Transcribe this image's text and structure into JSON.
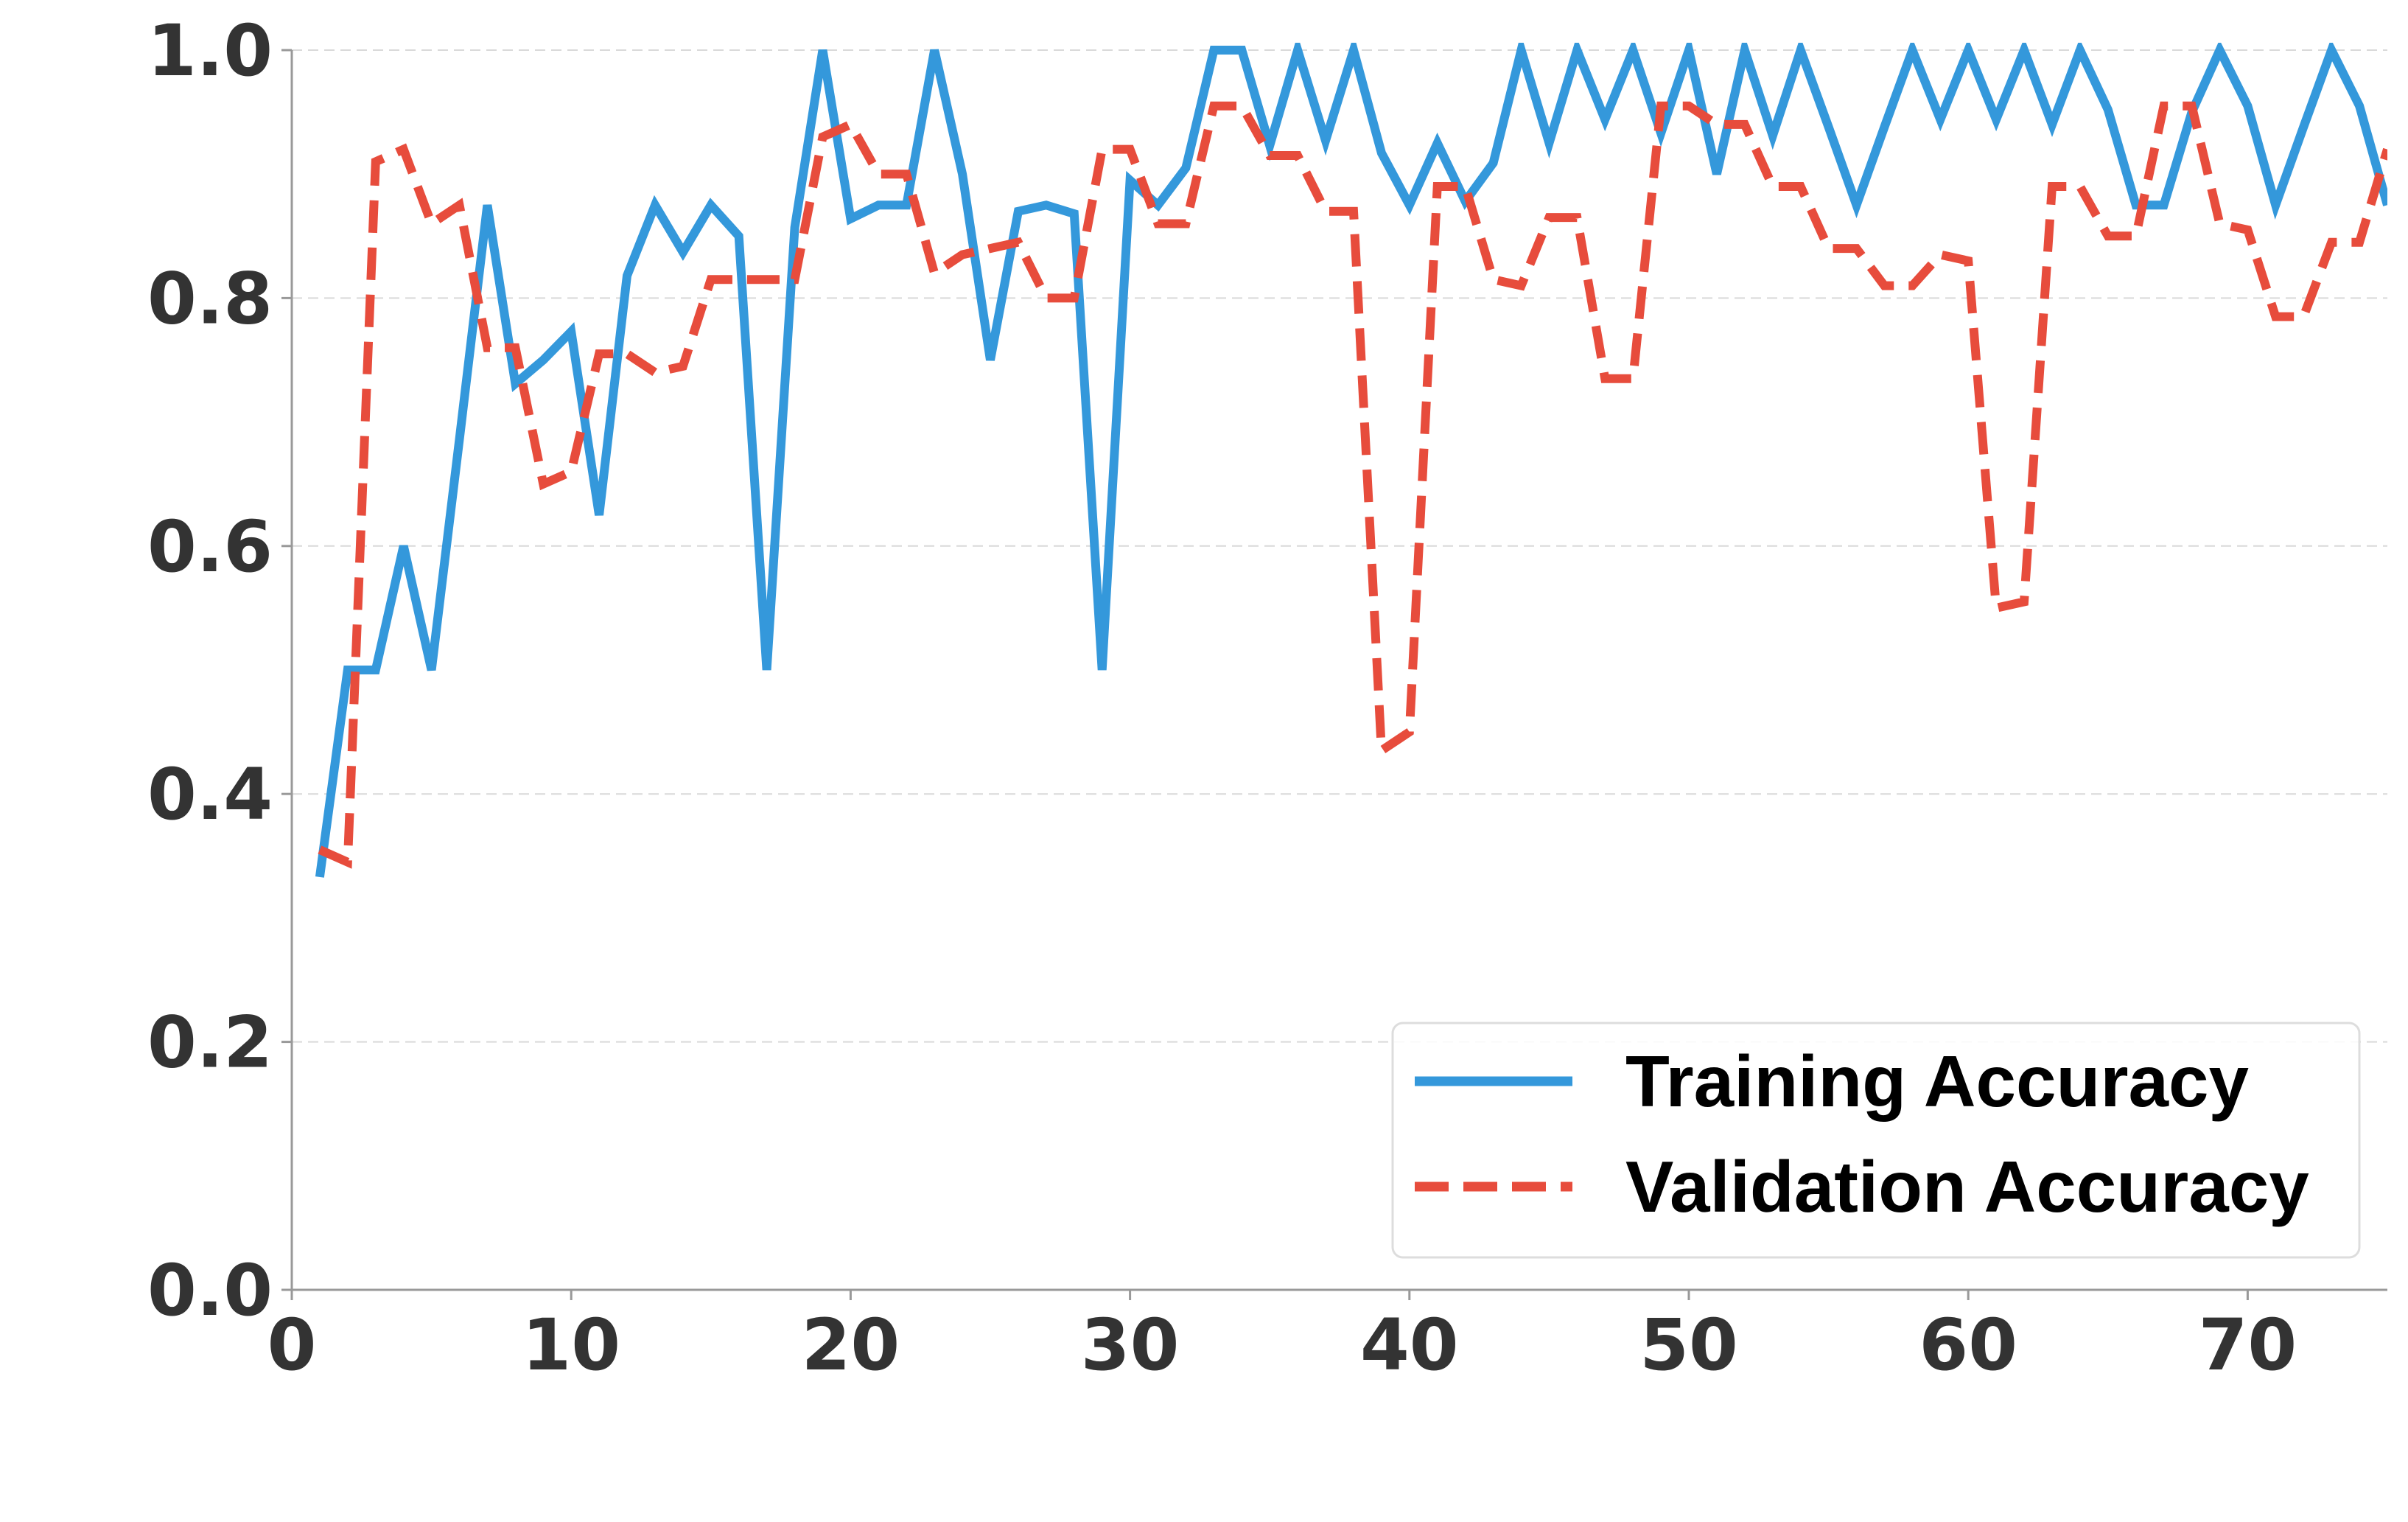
{
  "chart_data": {
    "type": "line",
    "title": "",
    "xlabel": "",
    "ylabel": "",
    "xlim": [
      0,
      75
    ],
    "ylim": [
      0,
      1.0
    ],
    "xticks": [
      0,
      10,
      20,
      30,
      40,
      50,
      60,
      70
    ],
    "yticks": [
      0.0,
      0.2,
      0.4,
      0.6,
      0.8,
      1.0
    ],
    "xtick_labels": [
      "0",
      "10",
      "20",
      "30",
      "40",
      "50",
      "60",
      "70"
    ],
    "ytick_labels": [
      "0.0",
      "0.2",
      "0.4",
      "0.6",
      "0.8",
      "1.0"
    ],
    "grid": "horizontal dashed",
    "legend_position": "lower-right",
    "series": [
      {
        "name": "Training Accuracy",
        "color": "#3498db",
        "style": "solid",
        "x": [
          1,
          2,
          3,
          4,
          5,
          6,
          7,
          8,
          9,
          10,
          11,
          12,
          13,
          14,
          15,
          16,
          17,
          18,
          19,
          20,
          21,
          22,
          23,
          24,
          25,
          26,
          27,
          28,
          29,
          30,
          31,
          32,
          33,
          34,
          35,
          36,
          37,
          38,
          39,
          40,
          41,
          42,
          43,
          44,
          45,
          46,
          47,
          48,
          49,
          50,
          51,
          52,
          53,
          54,
          55,
          56,
          57,
          58,
          59,
          60,
          61,
          62,
          63,
          64,
          65,
          66,
          67,
          68,
          69,
          70,
          71,
          72,
          73,
          74,
          75
        ],
        "values": [
          0.333,
          0.5,
          0.5,
          0.6,
          0.5,
          0.686,
          0.875,
          0.731,
          0.75,
          0.773,
          0.625,
          0.818,
          0.875,
          0.837,
          0.875,
          0.85,
          0.5,
          0.857,
          1.0,
          0.864,
          0.875,
          0.875,
          1.0,
          0.9,
          0.75,
          0.87,
          0.875,
          0.868,
          0.5,
          0.895,
          0.875,
          0.905,
          1.0,
          1.0,
          0.923,
          1.0,
          0.927,
          1.0,
          0.917,
          0.875,
          0.925,
          0.878,
          0.909,
          1.0,
          0.925,
          1.0,
          0.944,
          1.0,
          0.933,
          1.0,
          0.9,
          1.0,
          0.931,
          1.0,
          0.938,
          0.875,
          0.938,
          1.0,
          0.944,
          1.0,
          0.944,
          1.0,
          0.94,
          1.0,
          0.952,
          0.875,
          0.875,
          0.95,
          1.0,
          0.955,
          0.875,
          0.938,
          1.0,
          0.955,
          0.875
        ]
      },
      {
        "name": "Validation Accuracy",
        "color": "#e74c3c",
        "style": "dashed",
        "x": [
          1,
          2,
          3,
          4,
          5,
          6,
          7,
          8,
          9,
          10,
          11,
          12,
          13,
          14,
          15,
          16,
          17,
          18,
          19,
          20,
          21,
          22,
          23,
          24,
          25,
          26,
          27,
          28,
          29,
          30,
          31,
          32,
          33,
          34,
          35,
          36,
          37,
          38,
          39,
          40,
          41,
          42,
          43,
          44,
          45,
          46,
          47,
          48,
          49,
          50,
          51,
          52,
          53,
          54,
          55,
          56,
          57,
          58,
          59,
          60,
          61,
          62,
          63,
          64,
          65,
          66,
          67,
          68,
          69,
          70,
          71,
          72,
          73,
          74,
          75
        ],
        "values": [
          0.355,
          0.345,
          0.91,
          0.92,
          0.86,
          0.875,
          0.76,
          0.76,
          0.65,
          0.66,
          0.755,
          0.755,
          0.74,
          0.745,
          0.815,
          0.815,
          0.815,
          0.815,
          0.93,
          0.94,
          0.9,
          0.9,
          0.82,
          0.835,
          0.84,
          0.845,
          0.8,
          0.8,
          0.92,
          0.92,
          0.86,
          0.86,
          0.955,
          0.955,
          0.915,
          0.915,
          0.87,
          0.87,
          0.435,
          0.45,
          0.89,
          0.89,
          0.815,
          0.81,
          0.865,
          0.865,
          0.735,
          0.735,
          0.955,
          0.955,
          0.94,
          0.94,
          0.89,
          0.89,
          0.84,
          0.84,
          0.81,
          0.81,
          0.835,
          0.83,
          0.55,
          0.555,
          0.89,
          0.89,
          0.85,
          0.85,
          0.955,
          0.955,
          0.86,
          0.855,
          0.785,
          0.785,
          0.845,
          0.845,
          0.92
        ]
      }
    ]
  }
}
